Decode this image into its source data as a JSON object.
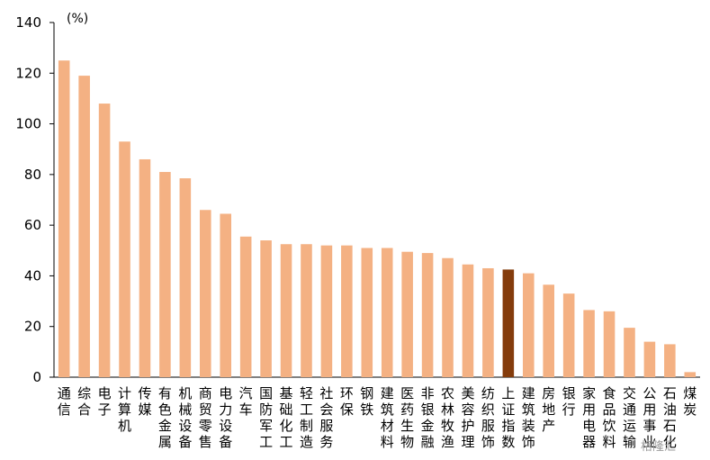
{
  "chart_data": {
    "type": "bar",
    "unit_label": "(%)",
    "ylim": [
      0,
      140
    ],
    "yticks": [
      0,
      20,
      40,
      60,
      80,
      100,
      120,
      140
    ],
    "grid": false,
    "legend": "none",
    "colors": {
      "bar": "#F4B183",
      "highlight": "#843C0C",
      "axis": "#000000"
    },
    "highlight_category": "上证指数",
    "categories": [
      "通信",
      "综合",
      "电子",
      "计算机",
      "传媒",
      "有色金属",
      "机械设备",
      "商贸零售",
      "电力设备",
      "汽车",
      "国防军工",
      "基础化工",
      "轻工制造",
      "社会服务",
      "环保",
      "钢铁",
      "建筑材料",
      "医药生物",
      "非银金融",
      "农林牧渔",
      "美容护理",
      "纺织服饰",
      "上证指数",
      "建筑装饰",
      "房地产",
      "银行",
      "家用电器",
      "食品饮料",
      "交通运输",
      "公用事业",
      "石油石化",
      "煤炭"
    ],
    "values": [
      125,
      119,
      108,
      93,
      86,
      81,
      78.5,
      66,
      64.5,
      55.5,
      54,
      52.5,
      52.5,
      52,
      52,
      51,
      51,
      49.5,
      49,
      47,
      44.5,
      43,
      42.5,
      41,
      36.5,
      33,
      26.5,
      26,
      19.5,
      14,
      13,
      2
    ]
  },
  "watermark": "格隆汇"
}
